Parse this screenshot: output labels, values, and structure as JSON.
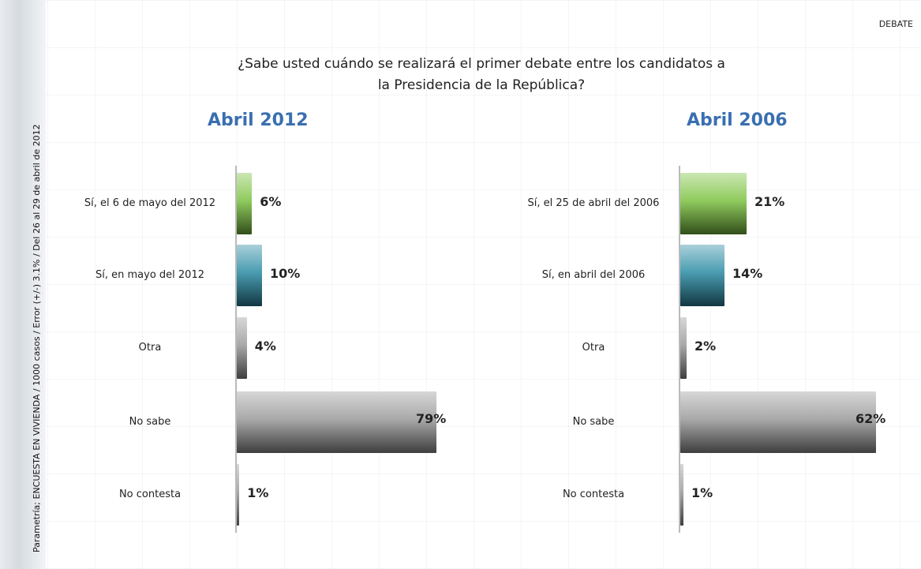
{
  "title": "¿Sabe usted cuándo se realizará el primer debate entre los candidatos a la Presidencia de la República?",
  "tag": "DEBATE",
  "source": "Parametría; ENCUESTA EN VIVIENDA / 1000 casos / Error (+/-) 3.1% / Del 26 al 29 de abril de 2012",
  "chart_data": [
    {
      "type": "hbar",
      "title": "Abril 2012",
      "categories": [
        "Sí, el 6 de mayo del 2012",
        "Sí, en mayo del 2012",
        "Otra",
        "No sabe",
        "No contesta"
      ],
      "values": [
        6,
        10,
        4,
        79,
        1
      ],
      "value_labels": [
        "6%",
        "10%",
        "4%",
        "79%",
        "1%"
      ],
      "colors": [
        "#7cc242",
        "#2a8aa3",
        "#9a9a9a",
        "#9a9a9a",
        "#9a9a9a"
      ]
    },
    {
      "type": "hbar",
      "title": "Abril 2006",
      "categories": [
        "Sí, el 25 de abril del 2006",
        "Sí, en abril del 2006",
        "Otra",
        "No sabe",
        "No contesta"
      ],
      "values": [
        21,
        14,
        2,
        62,
        1
      ],
      "value_labels": [
        "21%",
        "14%",
        "2%",
        "62%",
        "1%"
      ],
      "colors": [
        "#7cc242",
        "#2a8aa3",
        "#9a9a9a",
        "#9a9a9a",
        "#9a9a9a"
      ]
    }
  ]
}
